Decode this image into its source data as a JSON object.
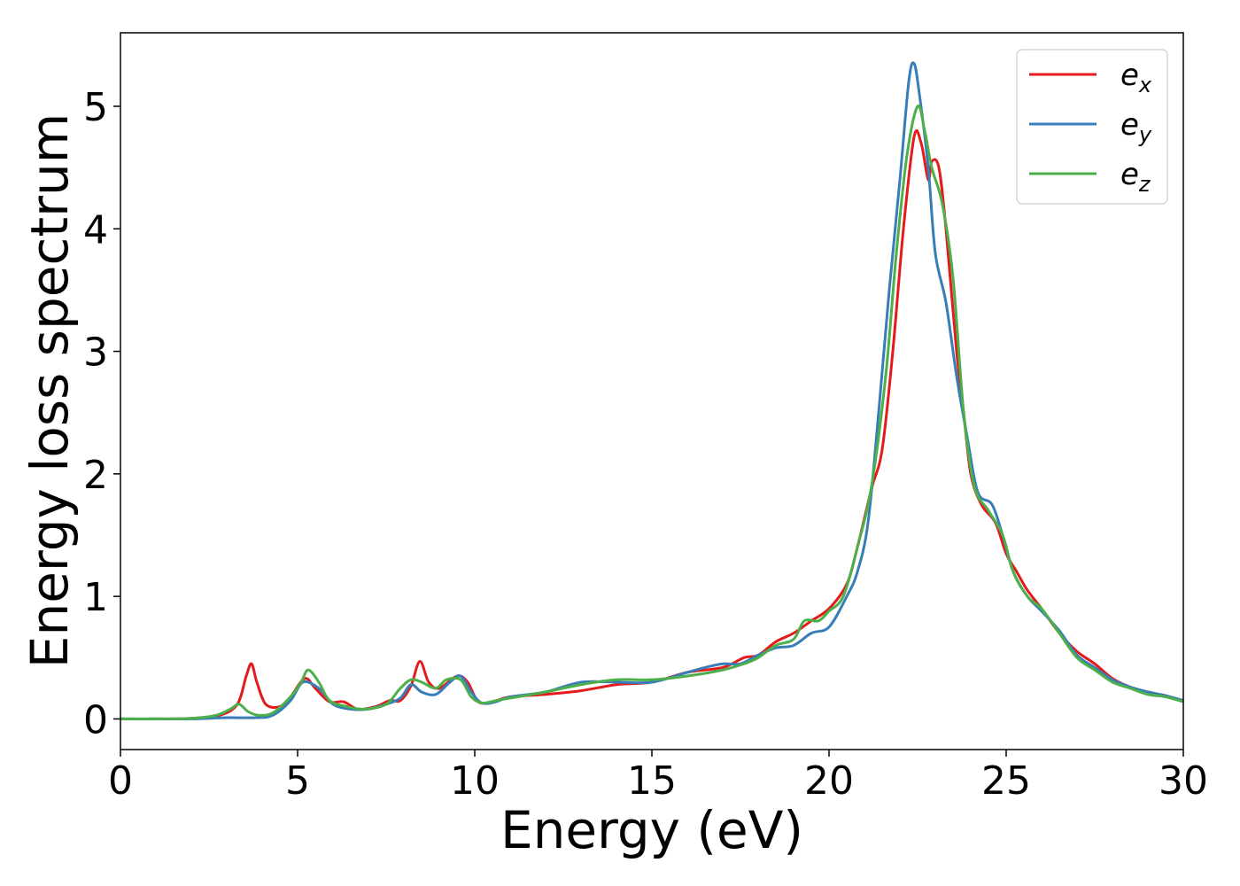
{
  "chart_data": {
    "type": "line",
    "title": "",
    "xlabel": "Energy (eV)",
    "ylabel": "Energy loss spectrum",
    "xlim": [
      0,
      30
    ],
    "ylim": [
      -0.25,
      5.6
    ],
    "xticks": [
      0,
      5,
      10,
      15,
      20,
      25,
      30
    ],
    "yticks": [
      0,
      1,
      2,
      3,
      4,
      5
    ],
    "xtick_labels": [
      "0",
      "5",
      "10",
      "15",
      "20",
      "25",
      "30"
    ],
    "ytick_labels": [
      "0",
      "1",
      "2",
      "3",
      "4",
      "5"
    ],
    "grid": false,
    "legend_position": "top-right",
    "series": [
      {
        "name": "e_x",
        "label_base": "e",
        "label_sub": "x",
        "color": "#e41a1c",
        "points": [
          [
            0,
            0
          ],
          [
            1,
            0
          ],
          [
            2,
            0.005
          ],
          [
            2.8,
            0.03
          ],
          [
            3.3,
            0.12
          ],
          [
            3.55,
            0.35
          ],
          [
            3.7,
            0.45
          ],
          [
            3.85,
            0.3
          ],
          [
            4.1,
            0.12
          ],
          [
            4.5,
            0.1
          ],
          [
            4.8,
            0.18
          ],
          [
            5.2,
            0.33
          ],
          [
            5.5,
            0.25
          ],
          [
            5.9,
            0.14
          ],
          [
            6.3,
            0.14
          ],
          [
            6.7,
            0.08
          ],
          [
            7.2,
            0.1
          ],
          [
            7.6,
            0.15
          ],
          [
            7.9,
            0.15
          ],
          [
            8.2,
            0.27
          ],
          [
            8.45,
            0.47
          ],
          [
            8.7,
            0.3
          ],
          [
            9.0,
            0.25
          ],
          [
            9.5,
            0.35
          ],
          [
            9.8,
            0.3
          ],
          [
            10.1,
            0.14
          ],
          [
            10.5,
            0.14
          ],
          [
            11,
            0.18
          ],
          [
            12,
            0.2
          ],
          [
            13,
            0.23
          ],
          [
            14,
            0.28
          ],
          [
            15,
            0.3
          ],
          [
            16,
            0.38
          ],
          [
            17,
            0.42
          ],
          [
            17.6,
            0.5
          ],
          [
            18,
            0.52
          ],
          [
            18.5,
            0.63
          ],
          [
            19,
            0.7
          ],
          [
            19.5,
            0.8
          ],
          [
            20,
            0.9
          ],
          [
            20.5,
            1.1
          ],
          [
            20.8,
            1.4
          ],
          [
            21.2,
            1.88
          ],
          [
            21.5,
            2.2
          ],
          [
            21.8,
            3.0
          ],
          [
            22.1,
            4.0
          ],
          [
            22.4,
            4.75
          ],
          [
            22.6,
            4.7
          ],
          [
            22.8,
            4.4
          ],
          [
            22.9,
            4.55
          ],
          [
            23.1,
            4.5
          ],
          [
            23.3,
            4.0
          ],
          [
            23.6,
            3.0
          ],
          [
            23.8,
            2.5
          ],
          [
            24.0,
            2.0
          ],
          [
            24.3,
            1.75
          ],
          [
            24.7,
            1.6
          ],
          [
            25.0,
            1.35
          ],
          [
            25.3,
            1.2
          ],
          [
            25.6,
            1.05
          ],
          [
            26.0,
            0.9
          ],
          [
            26.5,
            0.7
          ],
          [
            27,
            0.55
          ],
          [
            27.5,
            0.45
          ],
          [
            28,
            0.33
          ],
          [
            28.5,
            0.26
          ],
          [
            29,
            0.22
          ],
          [
            29.5,
            0.19
          ],
          [
            30,
            0.15
          ]
        ]
      },
      {
        "name": "e_y",
        "label_base": "e",
        "label_sub": "y",
        "color": "#377eb8",
        "points": [
          [
            0,
            0
          ],
          [
            1,
            0
          ],
          [
            2,
            0
          ],
          [
            3,
            0.01
          ],
          [
            3.8,
            0.01
          ],
          [
            4.3,
            0.03
          ],
          [
            4.8,
            0.15
          ],
          [
            5.15,
            0.3
          ],
          [
            5.6,
            0.25
          ],
          [
            6.0,
            0.12
          ],
          [
            6.5,
            0.08
          ],
          [
            7.0,
            0.08
          ],
          [
            7.5,
            0.12
          ],
          [
            7.9,
            0.17
          ],
          [
            8.2,
            0.28
          ],
          [
            8.5,
            0.22
          ],
          [
            8.9,
            0.2
          ],
          [
            9.3,
            0.3
          ],
          [
            9.6,
            0.35
          ],
          [
            9.9,
            0.22
          ],
          [
            10.2,
            0.13
          ],
          [
            10.6,
            0.14
          ],
          [
            11,
            0.18
          ],
          [
            12,
            0.22
          ],
          [
            13,
            0.3
          ],
          [
            14,
            0.3
          ],
          [
            15,
            0.3
          ],
          [
            16,
            0.38
          ],
          [
            16.5,
            0.42
          ],
          [
            17,
            0.45
          ],
          [
            17.5,
            0.45
          ],
          [
            18,
            0.52
          ],
          [
            18.5,
            0.58
          ],
          [
            19,
            0.6
          ],
          [
            19.5,
            0.7
          ],
          [
            20,
            0.75
          ],
          [
            20.5,
            1.0
          ],
          [
            20.8,
            1.2
          ],
          [
            21.1,
            1.6
          ],
          [
            21.4,
            2.5
          ],
          [
            21.7,
            3.5
          ],
          [
            22.0,
            4.4
          ],
          [
            22.25,
            5.2
          ],
          [
            22.4,
            5.35
          ],
          [
            22.55,
            5.1
          ],
          [
            22.8,
            4.5
          ],
          [
            23.0,
            3.8
          ],
          [
            23.3,
            3.4
          ],
          [
            23.6,
            2.8
          ],
          [
            23.9,
            2.3
          ],
          [
            24.2,
            1.85
          ],
          [
            24.6,
            1.75
          ],
          [
            24.9,
            1.5
          ],
          [
            25.2,
            1.2
          ],
          [
            25.6,
            1.0
          ],
          [
            26.0,
            0.88
          ],
          [
            26.5,
            0.72
          ],
          [
            27,
            0.52
          ],
          [
            27.5,
            0.42
          ],
          [
            28,
            0.32
          ],
          [
            28.5,
            0.26
          ],
          [
            29,
            0.22
          ],
          [
            29.5,
            0.19
          ],
          [
            30,
            0.15
          ]
        ]
      },
      {
        "name": "e_z",
        "label_base": "e",
        "label_sub": "z",
        "color": "#4daf4a",
        "points": [
          [
            0,
            0
          ],
          [
            1,
            0
          ],
          [
            2,
            0.005
          ],
          [
            2.7,
            0.03
          ],
          [
            3.1,
            0.08
          ],
          [
            3.35,
            0.12
          ],
          [
            3.6,
            0.06
          ],
          [
            3.9,
            0.03
          ],
          [
            4.3,
            0.05
          ],
          [
            4.8,
            0.18
          ],
          [
            5.1,
            0.3
          ],
          [
            5.3,
            0.4
          ],
          [
            5.6,
            0.3
          ],
          [
            5.9,
            0.15
          ],
          [
            6.4,
            0.1
          ],
          [
            6.9,
            0.08
          ],
          [
            7.5,
            0.12
          ],
          [
            7.9,
            0.25
          ],
          [
            8.2,
            0.32
          ],
          [
            8.5,
            0.3
          ],
          [
            8.9,
            0.25
          ],
          [
            9.2,
            0.32
          ],
          [
            9.6,
            0.32
          ],
          [
            9.9,
            0.18
          ],
          [
            10.2,
            0.13
          ],
          [
            10.6,
            0.15
          ],
          [
            11,
            0.17
          ],
          [
            12,
            0.22
          ],
          [
            13,
            0.28
          ],
          [
            14,
            0.32
          ],
          [
            15,
            0.32
          ],
          [
            16,
            0.35
          ],
          [
            17,
            0.4
          ],
          [
            17.6,
            0.45
          ],
          [
            18,
            0.5
          ],
          [
            18.5,
            0.6
          ],
          [
            19,
            0.65
          ],
          [
            19.3,
            0.8
          ],
          [
            19.7,
            0.8
          ],
          [
            20,
            0.88
          ],
          [
            20.4,
            1.0
          ],
          [
            20.8,
            1.4
          ],
          [
            21.2,
            1.9
          ],
          [
            21.6,
            2.8
          ],
          [
            21.9,
            3.8
          ],
          [
            22.2,
            4.6
          ],
          [
            22.5,
            5.0
          ],
          [
            22.7,
            4.8
          ],
          [
            22.9,
            4.5
          ],
          [
            23.2,
            4.2
          ],
          [
            23.5,
            3.6
          ],
          [
            23.8,
            2.5
          ],
          [
            24.1,
            1.9
          ],
          [
            24.5,
            1.7
          ],
          [
            24.9,
            1.5
          ],
          [
            25.2,
            1.2
          ],
          [
            25.6,
            1.0
          ],
          [
            26.0,
            0.9
          ],
          [
            26.5,
            0.7
          ],
          [
            27,
            0.5
          ],
          [
            27.5,
            0.4
          ],
          [
            28,
            0.3
          ],
          [
            28.5,
            0.25
          ],
          [
            29,
            0.2
          ],
          [
            29.5,
            0.18
          ],
          [
            30,
            0.14
          ]
        ]
      }
    ]
  }
}
